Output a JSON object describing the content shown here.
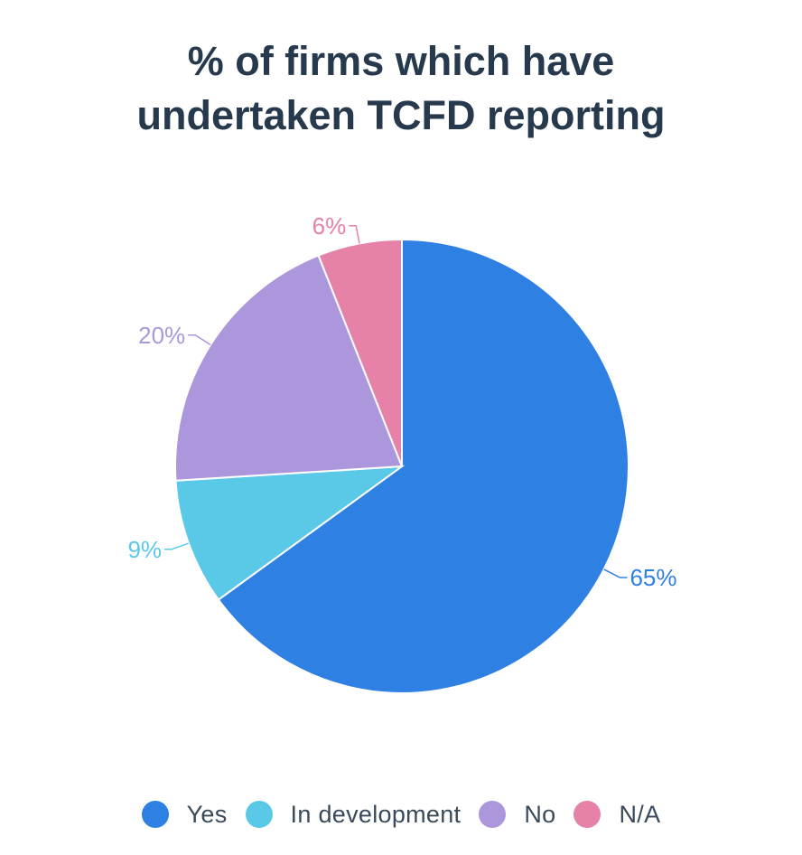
{
  "chart_data": {
    "type": "pie",
    "title": [
      "% of firms which have",
      "undertaken TCFD reporting"
    ],
    "slices": [
      {
        "label": "Yes",
        "value": 65,
        "display": "65%",
        "color": "#2f80e3"
      },
      {
        "label": "In development",
        "value": 9,
        "display": "9%",
        "color": "#5ac9e8"
      },
      {
        "label": "No",
        "value": 20,
        "display": "20%",
        "color": "#ac96dc"
      },
      {
        "label": "N/A",
        "value": 6,
        "display": "6%",
        "color": "#e681a8"
      }
    ],
    "legend_position": "bottom"
  }
}
